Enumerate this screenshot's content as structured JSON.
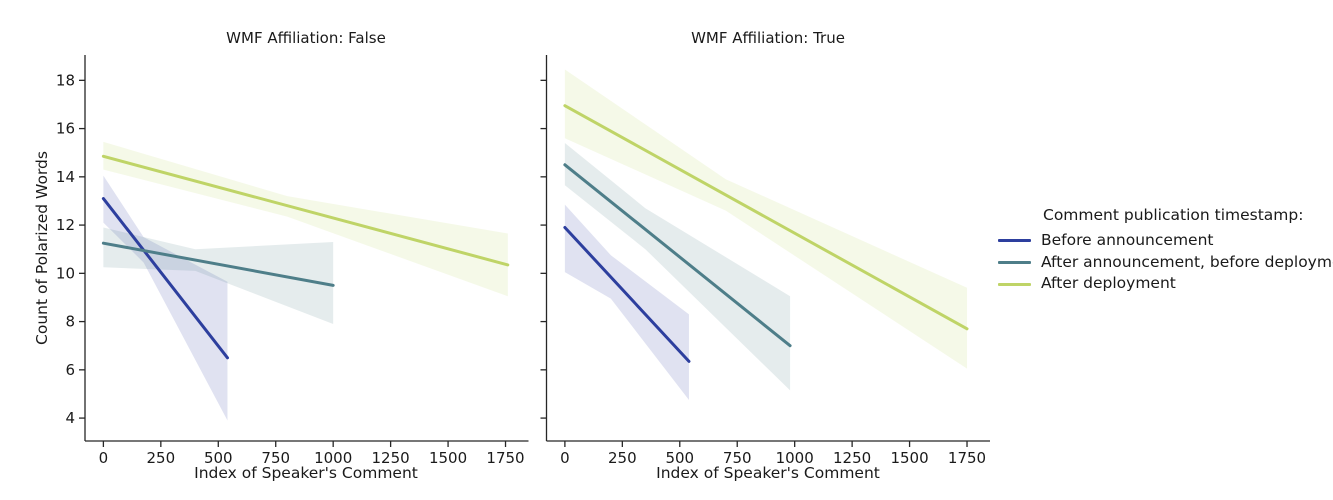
{
  "figure": {
    "background": "#ffffff",
    "text_color": "#1a1a1a",
    "axis_color": "#262626"
  },
  "legend": {
    "title": "Comment publication timestamp:",
    "entries": [
      {
        "label": "Before announcement",
        "color": "#2d3f9e"
      },
      {
        "label": "After announcement, before deployment",
        "color": "#4e7e89"
      },
      {
        "label": "After deployment",
        "color": "#bfd467"
      }
    ]
  },
  "chart_data": [
    {
      "type": "line",
      "title": "WMF Affiliation: False",
      "xlabel": "Index of Speaker's Comment",
      "ylabel": "Count of Polarized Words",
      "xlim": [
        -80,
        1850
      ],
      "ylim": [
        3.05,
        19.05
      ],
      "xticks": [
        0,
        250,
        500,
        750,
        1000,
        1250,
        1500,
        1750
      ],
      "yticks": [
        4,
        6,
        8,
        10,
        12,
        14,
        16,
        18
      ],
      "grid": false,
      "show_ytick_labels": true,
      "series": [
        {
          "name": "Before announcement",
          "color": "#2d3f9e",
          "x": [
            0,
            540
          ],
          "y": [
            13.1,
            6.5
          ],
          "band": {
            "x": [
              0,
              175,
              540
            ],
            "upper": [
              14.05,
              11.5,
              9.65
            ],
            "lower": [
              12.1,
              10.45,
              3.9
            ]
          }
        },
        {
          "name": "After announcement, before deployment",
          "color": "#4e7e89",
          "x": [
            0,
            1000
          ],
          "y": [
            11.25,
            9.5
          ],
          "band": {
            "x": [
              0,
              400,
              1000
            ],
            "upper": [
              11.9,
              11.0,
              11.3
            ],
            "lower": [
              10.25,
              10.1,
              7.9
            ]
          }
        },
        {
          "name": "After deployment",
          "color": "#bfd467",
          "x": [
            0,
            1760
          ],
          "y": [
            14.85,
            10.35
          ],
          "band": {
            "x": [
              0,
              800,
              1760
            ],
            "upper": [
              15.45,
              13.2,
              11.65
            ],
            "lower": [
              14.3,
              12.35,
              9.05
            ]
          }
        }
      ]
    },
    {
      "type": "line",
      "title": "WMF Affiliation: True",
      "xlabel": "Index of Speaker's Comment",
      "ylabel": "",
      "xlim": [
        -80,
        1850
      ],
      "ylim": [
        3.05,
        19.05
      ],
      "xticks": [
        0,
        250,
        500,
        750,
        1000,
        1250,
        1500,
        1750
      ],
      "yticks": [
        4,
        6,
        8,
        10,
        12,
        14,
        16,
        18
      ],
      "grid": false,
      "show_ytick_labels": false,
      "series": [
        {
          "name": "Before announcement",
          "color": "#2d3f9e",
          "x": [
            0,
            540
          ],
          "y": [
            11.9,
            6.35
          ],
          "band": {
            "x": [
              0,
              200,
              540
            ],
            "upper": [
              12.85,
              10.75,
              8.3
            ],
            "lower": [
              10.05,
              8.95,
              4.75
            ]
          }
        },
        {
          "name": "After announcement, before deployment",
          "color": "#4e7e89",
          "x": [
            0,
            980
          ],
          "y": [
            14.5,
            7.0
          ],
          "band": {
            "x": [
              0,
              350,
              980
            ],
            "upper": [
              15.4,
              12.7,
              9.05
            ],
            "lower": [
              13.65,
              11.0,
              5.15
            ]
          }
        },
        {
          "name": "After deployment",
          "color": "#bfd467",
          "x": [
            0,
            1750
          ],
          "y": [
            16.95,
            7.7
          ],
          "band": {
            "x": [
              0,
              700,
              1750
            ],
            "upper": [
              18.45,
              13.9,
              9.4
            ],
            "lower": [
              15.6,
              12.6,
              6.05
            ]
          }
        }
      ]
    }
  ]
}
